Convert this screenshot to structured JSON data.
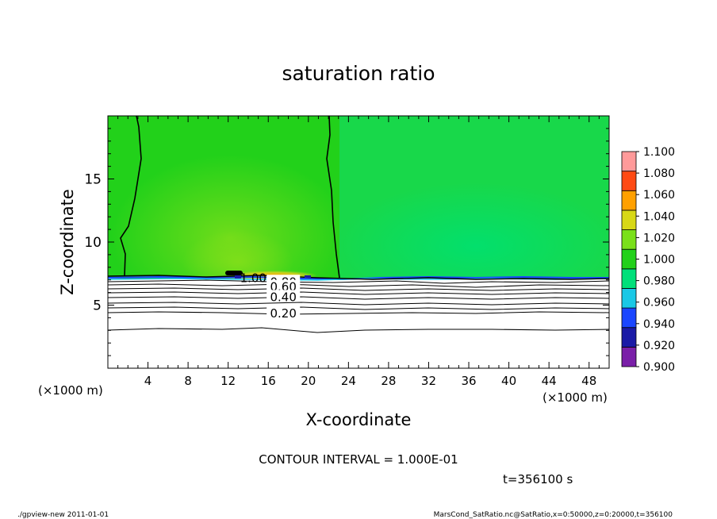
{
  "chart_data": {
    "type": "heatmap",
    "title": "saturation ratio",
    "xlabel": "X-coordinate",
    "ylabel": "Z-coordinate",
    "x_unit": "(×1000 m)",
    "y_unit": "(×1000 m)",
    "xlim": [
      0,
      50
    ],
    "ylim": [
      0,
      20
    ],
    "x_ticks": [
      4,
      8,
      12,
      16,
      20,
      24,
      28,
      32,
      36,
      40,
      44,
      48
    ],
    "y_ticks": [
      5,
      10,
      15
    ],
    "colorbar": {
      "levels": [
        0.9,
        0.92,
        0.94,
        0.96,
        0.98,
        1.0,
        1.02,
        1.04,
        1.06,
        1.08,
        1.1
      ],
      "labels": [
        "0.900",
        "0.920",
        "0.940",
        "0.960",
        "0.980",
        "1.000",
        "1.020",
        "1.040",
        "1.060",
        "1.080",
        "1.100"
      ],
      "colors": [
        "#7a1fa8",
        "#1a1aa6",
        "#1a46ff",
        "#19c8e6",
        "#00e07a",
        "#22d11a",
        "#7ae01a",
        "#d8d816",
        "#ffa000",
        "#ff4a14",
        "#ff9a9a"
      ]
    },
    "contour_labels": [
      {
        "text": "1.00",
        "x": 14.5,
        "y": 7.2
      },
      {
        "text": "0.80",
        "x": 17.5,
        "y": 6.9
      },
      {
        "text": "0.60",
        "x": 17.5,
        "y": 6.5
      },
      {
        "text": "0.40",
        "x": 17.5,
        "y": 5.7
      },
      {
        "text": "0.20",
        "x": 17.5,
        "y": 4.4
      }
    ],
    "saturation_boundary_z": 7.2,
    "annotation_interval": "CONTOUR INTERVAL = 1.000E-01",
    "annotation_time": "t=356100 s"
  },
  "footer": {
    "left": "./gpview-new  2011-01-01",
    "right": "MarsCond_SatRatio.nc@SatRatio,x=0:50000,z=0:20000,t=356100"
  }
}
